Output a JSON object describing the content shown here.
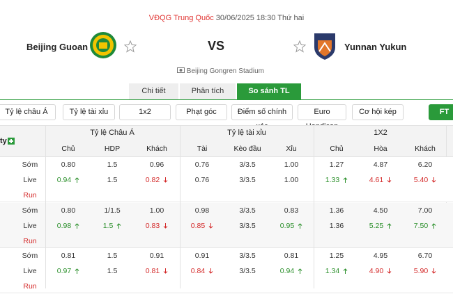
{
  "header": {
    "league": "VĐQG Trung Quốc",
    "datetime": "30/06/2025 18:30 Thứ hai",
    "home": "Beijing Guoan",
    "vs": "VS",
    "away": "Yunnan Yukun",
    "stadium": "Beijing Gongren Stadium"
  },
  "tabs": [
    {
      "label": "Chi tiết"
    },
    {
      "label": "Phân tích"
    },
    {
      "label": "So sánh TL",
      "active": true
    }
  ],
  "filters": [
    {
      "label": "Tỷ lệ châu Á"
    },
    {
      "label": "Tỷ lệ tài xỉu"
    },
    {
      "label": "1x2"
    },
    {
      "label": "Phạt góc"
    },
    {
      "label": "Điểm số chính xác"
    },
    {
      "label": "Euro Handicap"
    },
    {
      "label": "Cơ hội kép"
    },
    {
      "label": "FT",
      "active": true
    }
  ],
  "table": {
    "left_header": "ty",
    "groups": [
      "Tỷ lệ Châu Á",
      "Tỷ lệ tài xỉu",
      "1X2"
    ],
    "columns": [
      "Chủ",
      "HDP",
      "Khách",
      "Tài",
      "Kèo đầu",
      "Xỉu",
      "Chủ",
      "Hòa",
      "Khách"
    ],
    "blocks": [
      {
        "rows": [
          {
            "label": "Sớm",
            "cells": [
              "0.80",
              "1.5",
              "0.96",
              "0.76",
              "3/3.5",
              "1.00",
              "1.27",
              "4.87",
              "6.20"
            ]
          },
          {
            "label": "Live",
            "cells": [
              {
                "text": "0.94",
                "trend": "up"
              },
              "1.5",
              {
                "text": "0.82",
                "trend": "down"
              },
              "0.76",
              "3/3.5",
              "1.00",
              {
                "text": "1.33",
                "trend": "up"
              },
              {
                "text": "4.61",
                "trend": "down"
              },
              {
                "text": "5.40",
                "trend": "down"
              }
            ]
          },
          {
            "label": "Run",
            "cells": []
          }
        ]
      },
      {
        "rows": [
          {
            "label": "Sớm",
            "cells": [
              "0.80",
              "1/1.5",
              "1.00",
              "0.98",
              "3/3.5",
              "0.83",
              "1.36",
              "4.50",
              "7.00"
            ]
          },
          {
            "label": "Live",
            "cells": [
              {
                "text": "0.98",
                "trend": "up"
              },
              {
                "text": "1.5",
                "trend": "up"
              },
              {
                "text": "0.83",
                "trend": "down"
              },
              {
                "text": "0.85",
                "trend": "down"
              },
              "3/3.5",
              {
                "text": "0.95",
                "trend": "up"
              },
              "1.36",
              {
                "text": "5.25",
                "trend": "up"
              },
              {
                "text": "7.50",
                "trend": "up"
              }
            ]
          },
          {
            "label": "Run",
            "cells": []
          }
        ]
      },
      {
        "rows": [
          {
            "label": "Sớm",
            "cells": [
              "0.81",
              "1.5",
              "0.91",
              "0.91",
              "3/3.5",
              "0.81",
              "1.25",
              "4.95",
              "6.70"
            ]
          },
          {
            "label": "Live",
            "cells": [
              {
                "text": "0.97",
                "trend": "up"
              },
              "1.5",
              {
                "text": "0.81",
                "trend": "down"
              },
              {
                "text": "0.84",
                "trend": "down"
              },
              "3/3.5",
              {
                "text": "0.94",
                "trend": "up"
              },
              {
                "text": "1.34",
                "trend": "up"
              },
              {
                "text": "4.90",
                "trend": "down"
              },
              {
                "text": "5.90",
                "trend": "down"
              }
            ]
          },
          {
            "label": "Run",
            "cells": []
          }
        ]
      }
    ]
  }
}
